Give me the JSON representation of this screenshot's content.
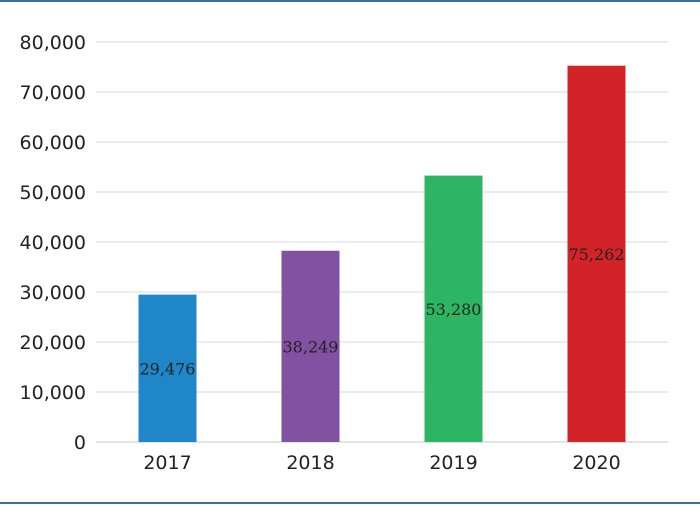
{
  "chart_data": {
    "type": "bar",
    "title": "",
    "xlabel": "",
    "ylabel": "",
    "categories": [
      "2017",
      "2018",
      "2019",
      "2020"
    ],
    "values": [
      29476,
      38249,
      53280,
      75262
    ],
    "data_labels": [
      "29,476",
      "38,249",
      "53,280",
      "75,262"
    ],
    "colors": [
      "#1f86c8",
      "#8251a1",
      "#2db564",
      "#d22428"
    ],
    "ylim": [
      0,
      80000
    ],
    "y_ticks": [
      0,
      10000,
      20000,
      30000,
      40000,
      50000,
      60000,
      70000,
      80000
    ],
    "y_tick_labels": [
      "0",
      "10,000",
      "20,000",
      "30,000",
      "40,000",
      "50,000",
      "60,000",
      "70,000",
      "80,000"
    ],
    "grid": true,
    "legend": "none",
    "frame_color": "#3b6ea5",
    "grid_color": "#d9d9d9"
  }
}
